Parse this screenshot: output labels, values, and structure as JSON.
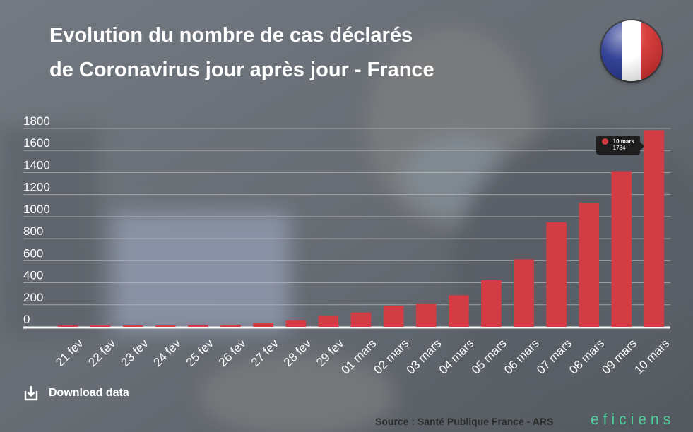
{
  "header": {
    "title_line1": "Evolution du nombre de cas déclarés",
    "title_line2": "de Coronavirus jour après jour - France"
  },
  "flag": {
    "icon": "france-flag-icon",
    "colors": [
      "#1f2f8c",
      "#ffffff",
      "#d42a2a"
    ]
  },
  "colors": {
    "bar": "#d23c44",
    "tooltip_dot": "#d23c44",
    "grid": "#b8bcc0",
    "axis_text": "#ffffff",
    "brand": "#4fd19a"
  },
  "chart_data": {
    "type": "bar",
    "title": "Evolution du nombre de cas déclarés de Coronavirus jour après jour - France",
    "xlabel": "",
    "ylabel": "",
    "ylim": [
      0,
      1800
    ],
    "yticks": [
      0,
      200,
      400,
      600,
      800,
      1000,
      1200,
      1400,
      1600,
      1800
    ],
    "grid": true,
    "categories": [
      "21 fev",
      "22 fev",
      "23 fev",
      "24 fev",
      "25 fev",
      "26 fev",
      "27 fev",
      "28 fev",
      "29 fev",
      "01 mars",
      "02 mars",
      "03 mars",
      "04 mars",
      "05 mars",
      "06 mars",
      "07 mars",
      "08 mars",
      "09 mars",
      "10 mars"
    ],
    "values": [
      12,
      12,
      12,
      12,
      14,
      18,
      38,
      57,
      100,
      130,
      191,
      212,
      285,
      423,
      613,
      949,
      1126,
      1412,
      1784
    ],
    "tooltip": {
      "label": "10 mars",
      "value": "1784"
    }
  },
  "footer": {
    "download_label": "Download data",
    "download_icon": "download-icon",
    "source": "Source : Santé Publique France - ARS",
    "brand": "eficiens"
  }
}
